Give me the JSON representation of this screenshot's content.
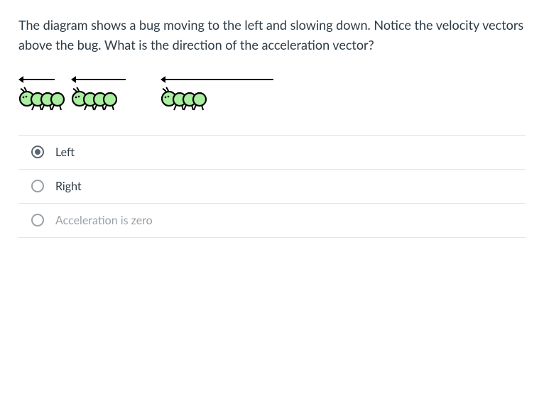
{
  "question": {
    "text": "The diagram shows a bug moving to the left and slowing down. Notice the velocity vectors above the bug.  What is the direction of the acceleration vector?"
  },
  "diagram": {
    "background": "#ffffff",
    "arrow_color": "#000000",
    "bug_body_color": "#a9ef9f",
    "bug_outline_color": "#000000",
    "bug_eye_color": "#000000",
    "units": [
      {
        "arrow_length": 52,
        "gap_after": 8
      },
      {
        "arrow_length": 78,
        "gap_after": 48
      },
      {
        "arrow_length": 160,
        "gap_after": 0
      }
    ],
    "arrow_stroke_width": 2,
    "arrowhead_size": 7,
    "bug_scale": 1.0
  },
  "options": [
    {
      "label": "Left",
      "selected": true,
      "dim": false
    },
    {
      "label": "Right",
      "selected": false,
      "dim": false
    },
    {
      "label": "Acceleration is zero",
      "selected": false,
      "dim": true
    }
  ]
}
